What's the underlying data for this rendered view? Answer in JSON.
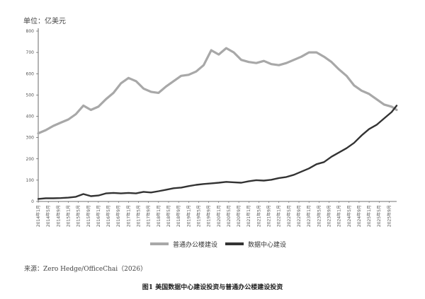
{
  "figure": {
    "unit_label": "单位：亿美元",
    "source": "来源：Zero Hedge/OfficeChai（2026）",
    "caption": "图1  美国数据中心建设投资与普通办公楼建设投资"
  },
  "chart_data": {
    "type": "line",
    "ylabel": "单位：亿美元",
    "ylim": [
      0,
      800
    ],
    "yticks": [
      0,
      100,
      200,
      300,
      400,
      500,
      600,
      700,
      800
    ],
    "grid": false,
    "legend_position": "bottom-center",
    "x_range": [
      "2014-01",
      "2025-12"
    ],
    "xticks": [
      "2014年1月",
      "2014年5月",
      "2014年9月",
      "2015年1月",
      "2015年5月",
      "2015年9月",
      "2016年1月",
      "2016年5月",
      "2016年9月",
      "2017年1月",
      "2017年5月",
      "2017年9月",
      "2018年1月",
      "2018年5月",
      "2018年9月",
      "2019年1月",
      "2019年5月",
      "2019年9月",
      "2020年1月",
      "2020年5月",
      "2020年9月",
      "2021年1月",
      "2021年5月",
      "2021年9月",
      "2022年1月",
      "2022年5月",
      "2022年9月",
      "2023年1月",
      "2023年5月",
      "2023年9月",
      "2024年1月",
      "2024年5月",
      "2024年9月",
      "2025年1月",
      "2025年5月",
      "2025年9月"
    ],
    "series": [
      {
        "name": "普通办公楼建设",
        "color": "#a8a8a8",
        "x": [
          "2014-01",
          "2014-04",
          "2014-07",
          "2014-10",
          "2015-01",
          "2015-04",
          "2015-07",
          "2015-10",
          "2016-01",
          "2016-04",
          "2016-07",
          "2016-10",
          "2017-01",
          "2017-04",
          "2017-07",
          "2017-10",
          "2018-01",
          "2018-04",
          "2018-07",
          "2018-10",
          "2019-01",
          "2019-04",
          "2019-07",
          "2019-10",
          "2020-01",
          "2020-04",
          "2020-07",
          "2020-10",
          "2021-01",
          "2021-04",
          "2021-07",
          "2021-10",
          "2022-01",
          "2022-04",
          "2022-07",
          "2022-10",
          "2023-01",
          "2023-04",
          "2023-07",
          "2023-10",
          "2024-01",
          "2024-04",
          "2024-07",
          "2024-10",
          "2025-01",
          "2025-04",
          "2025-07",
          "2025-10",
          "2025-12"
        ],
        "values": [
          320,
          335,
          355,
          370,
          385,
          410,
          450,
          430,
          445,
          480,
          510,
          555,
          580,
          565,
          530,
          515,
          510,
          540,
          565,
          590,
          595,
          610,
          640,
          710,
          690,
          720,
          700,
          665,
          655,
          650,
          660,
          645,
          640,
          650,
          665,
          680,
          700,
          700,
          680,
          655,
          620,
          590,
          545,
          520,
          505,
          480,
          455,
          445,
          430
        ]
      },
      {
        "name": "数据中心建设",
        "color": "#333333",
        "x": [
          "2014-01",
          "2014-04",
          "2014-07",
          "2014-10",
          "2015-01",
          "2015-04",
          "2015-07",
          "2015-10",
          "2016-01",
          "2016-04",
          "2016-07",
          "2016-10",
          "2017-01",
          "2017-04",
          "2017-07",
          "2017-10",
          "2018-01",
          "2018-04",
          "2018-07",
          "2018-10",
          "2019-01",
          "2019-04",
          "2019-07",
          "2019-10",
          "2020-01",
          "2020-04",
          "2020-07",
          "2020-10",
          "2021-01",
          "2021-04",
          "2021-07",
          "2021-10",
          "2022-01",
          "2022-04",
          "2022-07",
          "2022-10",
          "2023-01",
          "2023-04",
          "2023-07",
          "2023-10",
          "2024-01",
          "2024-04",
          "2024-07",
          "2024-10",
          "2025-01",
          "2025-04",
          "2025-07",
          "2025-10",
          "2025-12"
        ],
        "values": [
          12,
          15,
          15,
          16,
          18,
          22,
          35,
          25,
          28,
          38,
          40,
          38,
          40,
          38,
          45,
          42,
          48,
          55,
          62,
          65,
          72,
          78,
          82,
          85,
          88,
          92,
          90,
          88,
          95,
          100,
          98,
          102,
          110,
          115,
          125,
          140,
          155,
          175,
          185,
          210,
          230,
          250,
          275,
          310,
          340,
          360,
          390,
          420,
          450
        ]
      }
    ]
  }
}
